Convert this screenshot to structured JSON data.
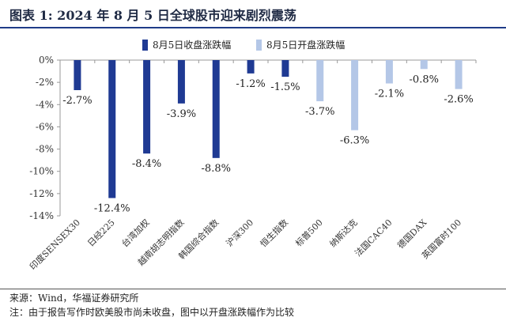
{
  "title": "图表 1:  2024 年 8 月 5 日全球股市迎来剧烈震荡",
  "footer": {
    "source": "来源：Wind，华福证券研究所",
    "note": "注：由于报告写作时欧美股市尚未收盘，图中以开盘涨跌幅作为比较"
  },
  "colors": {
    "close": "#1f3a93",
    "open": "#b4c7e7",
    "title_rule": "#1f3c88"
  },
  "chart_data": {
    "type": "bar",
    "title": "",
    "xlabel": "",
    "ylabel": "",
    "ylim": [
      -14,
      0
    ],
    "yticks": [
      0,
      -2,
      -4,
      -6,
      -8,
      -10,
      -12,
      -14
    ],
    "ytick_labels": [
      "0%",
      "-2%",
      "-4%",
      "-6%",
      "-8%",
      "-10%",
      "-12%",
      "-14%"
    ],
    "grid": false,
    "legend_position": "top",
    "categories": [
      "印度SENSEX30",
      "日经225",
      "台湾加权",
      "越南胡志明指数",
      "韩国综合指数",
      "沪深300",
      "恒生指数",
      "标普500",
      "纳斯达克",
      "法国CAC40",
      "德国DAX",
      "英国富时100"
    ],
    "series": [
      {
        "name": "8月5日收盘涨跌幅",
        "values": [
          -2.7,
          -12.4,
          -8.4,
          -3.9,
          -8.8,
          -1.2,
          -1.5,
          null,
          null,
          null,
          null,
          null
        ]
      },
      {
        "name": "8月5日开盘涨跌幅",
        "values": [
          null,
          null,
          null,
          null,
          null,
          null,
          null,
          -3.7,
          -6.3,
          -2.1,
          -0.8,
          -2.6
        ]
      }
    ],
    "data_labels": [
      "-2.7%",
      "-12.4%",
      "-8.4%",
      "-3.9%",
      "-8.8%",
      "-1.2%",
      "-1.5%",
      "-3.7%",
      "-6.3%",
      "-2.1%",
      "-0.8%",
      "-2.6%"
    ]
  }
}
